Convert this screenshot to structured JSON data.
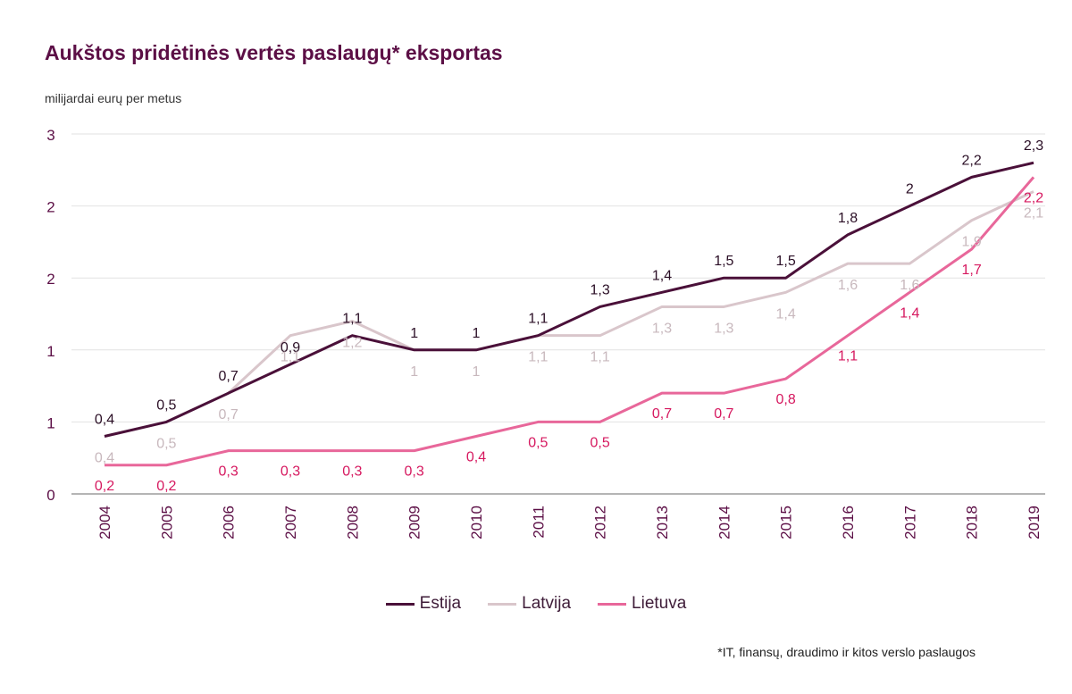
{
  "title": "Aukštos pridėtinės vertės paslaugų* eksportas",
  "unit_label": "milijardai eurų per metus",
  "footnote": "*IT, finansų, draudimo ir kitos verslo paslaugos",
  "colors": {
    "Estija": "#4a1039",
    "Latvija": "#d9c6cb",
    "Lietuva": "#e8679a",
    "Estija_label": "#2b0f26",
    "Latvija_label": "#c8b8bd",
    "Lietuva_label": "#d6185f",
    "axis_text": "#5c0f46",
    "grid": "#e2e2e2"
  },
  "legend": [
    {
      "name": "Estija"
    },
    {
      "name": "Latvija"
    },
    {
      "name": "Lietuva"
    }
  ],
  "chart_data": {
    "type": "line",
    "categories": [
      "2004",
      "2005",
      "2006",
      "2007",
      "2008",
      "2009",
      "2010",
      "2011",
      "2012",
      "2013",
      "2014",
      "2015",
      "2016",
      "2017",
      "2018",
      "2019"
    ],
    "y_ticks": [
      {
        "value": 0,
        "label": "0"
      },
      {
        "value": 0.5,
        "label": "1"
      },
      {
        "value": 1.0,
        "label": "1"
      },
      {
        "value": 1.5,
        "label": "2"
      },
      {
        "value": 2.0,
        "label": "2"
      },
      {
        "value": 2.5,
        "label": "3"
      }
    ],
    "ylim": [
      0,
      2.5
    ],
    "grid": true,
    "legend_position": "bottom",
    "series": [
      {
        "name": "Estija",
        "values": [
          0.4,
          0.5,
          0.7,
          0.9,
          1.1,
          1.0,
          1.0,
          1.1,
          1.3,
          1.4,
          1.5,
          1.5,
          1.8,
          2.0,
          2.2,
          2.3
        ],
        "labels": [
          "0,4",
          "0,5",
          "0,7",
          "0,9",
          "1,1",
          "1",
          "1",
          "1,1",
          "1,3",
          "1,4",
          "1,5",
          "1,5",
          "1,8",
          "2",
          "2,2",
          "2,3"
        ]
      },
      {
        "name": "Latvija",
        "values": [
          0.4,
          0.5,
          0.7,
          1.1,
          1.2,
          1.0,
          1.0,
          1.1,
          1.1,
          1.3,
          1.3,
          1.4,
          1.6,
          1.6,
          1.9,
          2.1
        ],
        "labels": [
          "0,4",
          "0,5",
          "0,7",
          "1,1",
          "1,2",
          "1",
          "1",
          "1,1",
          "1,1",
          "1,3",
          "1,3",
          "1,4",
          "1,6",
          "1,6",
          "1,9",
          "2,1"
        ]
      },
      {
        "name": "Lietuva",
        "values": [
          0.2,
          0.2,
          0.3,
          0.3,
          0.3,
          0.3,
          0.4,
          0.5,
          0.5,
          0.7,
          0.7,
          0.8,
          1.1,
          1.4,
          1.7,
          2.2
        ],
        "labels": [
          "0,2",
          "0,2",
          "0,3",
          "0,3",
          "0,3",
          "0,3",
          "0,4",
          "0,5",
          "0,5",
          "0,7",
          "0,7",
          "0,8",
          "1,1",
          "1,4",
          "1,7",
          "2,2"
        ]
      }
    ]
  }
}
